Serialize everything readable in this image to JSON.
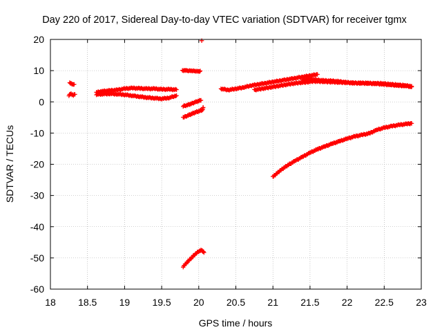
{
  "chart_data": {
    "type": "scatter",
    "title": "Day 220 of 2017, Sidereal Day-to-day VTEC variation (SDTVAR) for receiver tgmx",
    "xlabel": "GPS time / hours",
    "ylabel": "SDTVAR / TECUs",
    "xlim": [
      18,
      23
    ],
    "ylim": [
      -60,
      20
    ],
    "grid": true,
    "marker": "plus",
    "color": "#ff0000",
    "x_ticks": [
      "18",
      "18.5",
      "19",
      "19.5",
      "20",
      "20.5",
      "21",
      "21.5",
      "22",
      "22.5",
      "23"
    ],
    "y_ticks": [
      "20",
      "10",
      "0",
      "-10",
      "-20",
      "-30",
      "-40",
      "-50",
      "-60"
    ],
    "segments": [
      {
        "points": [
          [
            18.26,
            6.0
          ],
          [
            18.28,
            5.8
          ],
          [
            18.3,
            5.5
          ],
          [
            18.32,
            5.6
          ]
        ]
      },
      {
        "points": [
          [
            18.25,
            2.0
          ],
          [
            18.27,
            2.6
          ],
          [
            18.29,
            2.3
          ],
          [
            18.31,
            2.1
          ],
          [
            18.33,
            2.4
          ]
        ]
      },
      {
        "points": [
          [
            18.62,
            3.0
          ],
          [
            18.7,
            3.4
          ],
          [
            18.8,
            3.6
          ],
          [
            18.9,
            3.8
          ],
          [
            19.0,
            4.2
          ],
          [
            19.1,
            4.4
          ],
          [
            19.2,
            4.3
          ],
          [
            19.3,
            4.2
          ],
          [
            19.4,
            4.2
          ],
          [
            19.5,
            4.0
          ],
          [
            19.6,
            4.0
          ],
          [
            19.7,
            3.9
          ]
        ]
      },
      {
        "points": [
          [
            18.62,
            2.4
          ],
          [
            18.7,
            2.5
          ],
          [
            18.8,
            2.6
          ],
          [
            18.9,
            2.5
          ],
          [
            19.0,
            2.3
          ],
          [
            19.1,
            2.0
          ],
          [
            19.2,
            1.7
          ],
          [
            19.3,
            1.4
          ],
          [
            19.4,
            1.2
          ],
          [
            19.5,
            1.0
          ],
          [
            19.6,
            1.3
          ],
          [
            19.7,
            2.0
          ]
        ]
      },
      {
        "points": [
          [
            19.78,
            10.1
          ],
          [
            19.85,
            10.0
          ],
          [
            19.9,
            10.0
          ],
          [
            19.95,
            9.9
          ],
          [
            20.0,
            9.8
          ],
          [
            20.02,
            9.9
          ]
        ]
      },
      {
        "points": [
          [
            20.04,
            19.6
          ]
        ]
      },
      {
        "points": [
          [
            19.79,
            -1.4
          ],
          [
            19.85,
            -1.0
          ],
          [
            19.9,
            -0.6
          ],
          [
            19.95,
            -0.1
          ],
          [
            20.0,
            0.3
          ],
          [
            20.03,
            0.5
          ]
        ]
      },
      {
        "points": [
          [
            19.79,
            -5.0
          ],
          [
            19.85,
            -4.4
          ],
          [
            19.9,
            -3.9
          ],
          [
            19.95,
            -3.4
          ],
          [
            20.0,
            -3.0
          ],
          [
            20.05,
            -2.6
          ],
          [
            20.06,
            -1.8
          ]
        ]
      },
      {
        "points": [
          [
            19.79,
            -52.8
          ],
          [
            19.85,
            -51.2
          ],
          [
            19.9,
            -50.0
          ],
          [
            19.95,
            -48.8
          ],
          [
            20.0,
            -47.9
          ],
          [
            20.04,
            -47.5
          ],
          [
            20.07,
            -48.3
          ]
        ]
      },
      {
        "points": [
          [
            20.3,
            4.2
          ],
          [
            20.4,
            3.8
          ],
          [
            20.5,
            4.2
          ],
          [
            20.6,
            4.6
          ],
          [
            20.7,
            5.2
          ],
          [
            20.8,
            5.6
          ],
          [
            20.9,
            6.0
          ],
          [
            21.0,
            6.4
          ],
          [
            21.1,
            6.8
          ],
          [
            21.2,
            7.2
          ],
          [
            21.3,
            7.6
          ],
          [
            21.4,
            8.0
          ],
          [
            21.5,
            8.4
          ],
          [
            21.6,
            8.8
          ]
        ]
      },
      {
        "points": [
          [
            20.75,
            3.8
          ],
          [
            20.85,
            4.2
          ],
          [
            20.95,
            4.6
          ],
          [
            21.05,
            5.0
          ],
          [
            21.15,
            5.4
          ],
          [
            21.25,
            5.8
          ],
          [
            21.35,
            6.1
          ],
          [
            21.45,
            6.3
          ],
          [
            21.55,
            6.6
          ],
          [
            21.65,
            6.5
          ],
          [
            21.75,
            6.4
          ],
          [
            21.85,
            6.3
          ],
          [
            21.95,
            6.2
          ],
          [
            22.05,
            6.1
          ],
          [
            22.15,
            6.0
          ],
          [
            22.25,
            6.0
          ],
          [
            22.35,
            5.9
          ],
          [
            22.45,
            5.9
          ],
          [
            22.55,
            5.7
          ],
          [
            22.65,
            5.5
          ],
          [
            22.75,
            5.3
          ],
          [
            22.87,
            5.0
          ]
        ]
      },
      {
        "points": [
          [
            21.4,
            7.0
          ],
          [
            21.5,
            7.3
          ],
          [
            21.6,
            7.0
          ],
          [
            21.7,
            6.8
          ],
          [
            21.8,
            6.7
          ],
          [
            21.9,
            6.5
          ],
          [
            22.0,
            6.2
          ],
          [
            22.1,
            6.0
          ],
          [
            22.2,
            6.0
          ],
          [
            22.3,
            5.9
          ],
          [
            22.4,
            5.8
          ],
          [
            22.5,
            5.6
          ],
          [
            22.6,
            5.4
          ],
          [
            22.7,
            5.2
          ],
          [
            22.8,
            5.1
          ],
          [
            22.87,
            4.8
          ]
        ]
      },
      {
        "points": [
          [
            21.0,
            -24.0
          ],
          [
            21.05,
            -23.0
          ],
          [
            21.1,
            -22.0
          ],
          [
            21.15,
            -21.1
          ],
          [
            21.2,
            -20.3
          ],
          [
            21.3,
            -18.9
          ],
          [
            21.4,
            -17.6
          ],
          [
            21.5,
            -16.3
          ],
          [
            21.6,
            -15.2
          ],
          [
            21.7,
            -14.3
          ],
          [
            21.8,
            -13.4
          ],
          [
            21.9,
            -12.6
          ],
          [
            22.0,
            -11.8
          ],
          [
            22.1,
            -11.1
          ],
          [
            22.2,
            -10.6
          ],
          [
            22.3,
            -10.1
          ],
          [
            22.4,
            -9.0
          ],
          [
            22.5,
            -8.3
          ],
          [
            22.6,
            -7.8
          ],
          [
            22.7,
            -7.4
          ],
          [
            22.8,
            -7.1
          ],
          [
            22.87,
            -6.9
          ]
        ]
      }
    ]
  }
}
